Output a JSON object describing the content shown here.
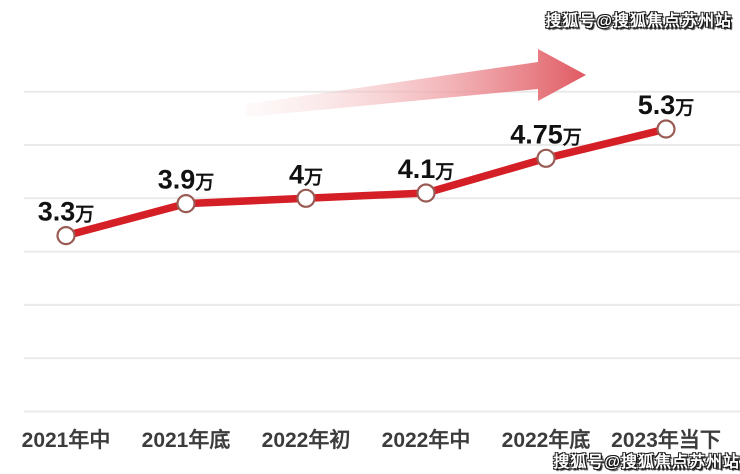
{
  "watermark": {
    "text": "搜狐号@搜狐焦点苏州站"
  },
  "colors": {
    "background": "#ffffff",
    "line": "#d51f26",
    "marker_fill": "#ffffff",
    "marker_border": "#9a5b55",
    "grid": "#eaeaea",
    "value_label": "#111111",
    "axis_label": "#3c3c3c",
    "arrow_start": "#f8dcdc",
    "arrow_mid": "#f0a6ab",
    "arrow_end": "#e05a62"
  },
  "chart_data": {
    "type": "line",
    "title": "",
    "categories": [
      "2021年中",
      "2021年底",
      "2022年初",
      "2022年中",
      "2022年底",
      "2023年当下"
    ],
    "values": [
      3.3,
      3.9,
      4.0,
      4.1,
      4.75,
      5.3
    ],
    "point_labels": [
      {
        "num": "3.3",
        "unit": "万"
      },
      {
        "num": "3.9",
        "unit": "万"
      },
      {
        "num": "4",
        "unit": "万"
      },
      {
        "num": "4.1",
        "unit": "万"
      },
      {
        "num": "4.75",
        "unit": "万"
      },
      {
        "num": "5.3",
        "unit": "万"
      }
    ],
    "unit": "万",
    "ylim": [
      0,
      6
    ],
    "grid": "horizontal",
    "legend": "none",
    "annotations": [
      "upward-trend-arrow"
    ]
  }
}
